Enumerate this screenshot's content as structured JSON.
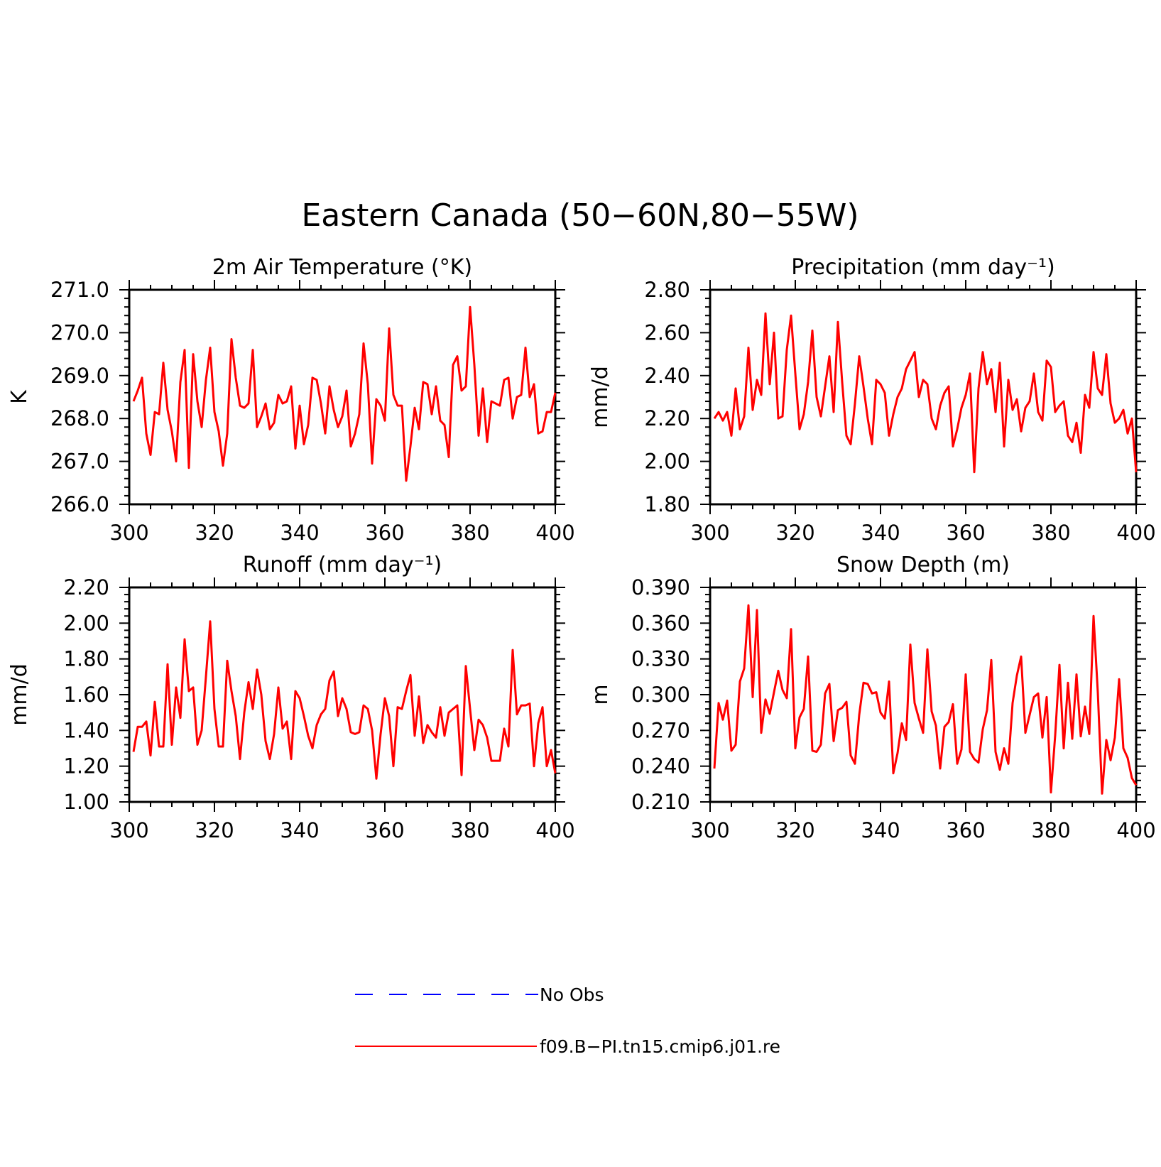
{
  "figure": {
    "title": "Eastern Canada (50−60N,80−55W)",
    "legend": [
      {
        "label": "No Obs",
        "color": "#0000ff",
        "style": "dashed"
      },
      {
        "label": "f09.B−PI.tn15.cmip6.j01.re",
        "color": "#ff0000",
        "style": "solid"
      }
    ]
  },
  "chart_data": [
    {
      "type": "line",
      "title": "2m Air Temperature (°K)",
      "xlabel": "",
      "ylabel": "K",
      "xlim": [
        300,
        400
      ],
      "ylim": [
        266.0,
        271.0
      ],
      "xticks": [
        "300",
        "320",
        "340",
        "360",
        "380",
        "400"
      ],
      "yticks": [
        "266.0",
        "267.0",
        "268.0",
        "269.0",
        "270.0",
        "271.0"
      ],
      "x_start": 301,
      "series": [
        {
          "name": "f09.B−PI.tn15.cmip6.j01.re",
          "color": "#ff0000",
          "values": [
            268.4,
            268.65,
            268.95,
            267.65,
            267.15,
            268.15,
            268.1,
            269.3,
            268.2,
            267.7,
            267.0,
            268.85,
            269.6,
            266.85,
            269.5,
            268.4,
            267.8,
            268.9,
            269.65,
            268.15,
            267.7,
            266.9,
            267.65,
            269.85,
            268.95,
            268.3,
            268.25,
            268.35,
            269.6,
            267.8,
            268.05,
            268.35,
            267.75,
            267.9,
            268.55,
            268.35,
            268.4,
            268.75,
            267.3,
            268.3,
            267.4,
            267.85,
            268.95,
            268.9,
            268.35,
            267.65,
            268.75,
            268.2,
            267.8,
            268.05,
            268.65,
            267.35,
            267.65,
            268.1,
            269.75,
            268.8,
            266.95,
            268.45,
            268.3,
            267.95,
            270.1,
            268.55,
            268.3,
            268.3,
            266.55,
            267.35,
            268.25,
            267.75,
            268.85,
            268.8,
            268.1,
            268.75,
            267.95,
            267.85,
            267.1,
            269.25,
            269.45,
            268.65,
            268.75,
            270.6,
            269.25,
            267.6,
            268.7,
            267.45,
            268.4,
            268.35,
            268.3,
            268.9,
            268.95,
            268.0,
            268.5,
            268.55,
            269.65,
            268.5,
            268.8,
            267.65,
            267.7,
            268.15,
            268.15,
            268.6
          ]
        }
      ]
    },
    {
      "type": "line",
      "title": "Precipitation (mm day⁻¹)",
      "xlabel": "",
      "ylabel": "mm/d",
      "xlim": [
        300,
        400
      ],
      "ylim": [
        1.8,
        2.8
      ],
      "xticks": [
        "300",
        "320",
        "340",
        "360",
        "380",
        "400"
      ],
      "yticks": [
        "1.80",
        "2.00",
        "2.20",
        "2.40",
        "2.60",
        "2.80"
      ],
      "x_start": 301,
      "series": [
        {
          "name": "f09.B−PI.tn15.cmip6.j01.re",
          "color": "#ff0000",
          "values": [
            2.2,
            2.23,
            2.19,
            2.23,
            2.12,
            2.34,
            2.15,
            2.21,
            2.53,
            2.24,
            2.38,
            2.31,
            2.69,
            2.36,
            2.6,
            2.2,
            2.21,
            2.52,
            2.68,
            2.41,
            2.15,
            2.22,
            2.37,
            2.61,
            2.3,
            2.21,
            2.35,
            2.49,
            2.23,
            2.65,
            2.37,
            2.12,
            2.08,
            2.27,
            2.49,
            2.35,
            2.2,
            2.08,
            2.38,
            2.36,
            2.32,
            2.12,
            2.22,
            2.3,
            2.34,
            2.43,
            2.47,
            2.51,
            2.3,
            2.38,
            2.36,
            2.2,
            2.15,
            2.26,
            2.32,
            2.35,
            2.07,
            2.15,
            2.25,
            2.31,
            2.41,
            1.95,
            2.34,
            2.51,
            2.36,
            2.43,
            2.23,
            2.46,
            2.07,
            2.38,
            2.24,
            2.29,
            2.14,
            2.25,
            2.28,
            2.41,
            2.23,
            2.19,
            2.47,
            2.44,
            2.23,
            2.26,
            2.28,
            2.12,
            2.09,
            2.18,
            2.04,
            2.31,
            2.25,
            2.51,
            2.34,
            2.31,
            2.5,
            2.27,
            2.18,
            2.2,
            2.24,
            2.13,
            2.2,
            1.95
          ]
        }
      ]
    },
    {
      "type": "line",
      "title": "Runoff (mm day⁻¹)",
      "xlabel": "",
      "ylabel": "mm/d",
      "xlim": [
        300,
        400
      ],
      "ylim": [
        1.0,
        2.2
      ],
      "xticks": [
        "300",
        "320",
        "340",
        "360",
        "380",
        "400"
      ],
      "yticks": [
        "1.00",
        "1.20",
        "1.40",
        "1.60",
        "1.80",
        "2.00",
        "2.20"
      ],
      "x_start": 301,
      "series": [
        {
          "name": "f09.B−PI.tn15.cmip6.j01.re",
          "color": "#ff0000",
          "values": [
            1.28,
            1.42,
            1.42,
            1.45,
            1.26,
            1.56,
            1.31,
            1.31,
            1.77,
            1.32,
            1.64,
            1.47,
            1.91,
            1.62,
            1.64,
            1.32,
            1.4,
            1.7,
            2.01,
            1.52,
            1.31,
            1.31,
            1.79,
            1.62,
            1.48,
            1.24,
            1.5,
            1.67,
            1.52,
            1.74,
            1.6,
            1.34,
            1.24,
            1.38,
            1.64,
            1.41,
            1.45,
            1.24,
            1.62,
            1.58,
            1.48,
            1.37,
            1.3,
            1.43,
            1.49,
            1.52,
            1.68,
            1.73,
            1.48,
            1.58,
            1.52,
            1.39,
            1.38,
            1.39,
            1.54,
            1.52,
            1.4,
            1.13,
            1.38,
            1.58,
            1.48,
            1.2,
            1.53,
            1.52,
            1.62,
            1.71,
            1.37,
            1.59,
            1.33,
            1.43,
            1.39,
            1.36,
            1.53,
            1.37,
            1.5,
            1.52,
            1.54,
            1.15,
            1.76,
            1.52,
            1.29,
            1.46,
            1.43,
            1.36,
            1.23,
            1.23,
            1.23,
            1.41,
            1.31,
            1.85,
            1.49,
            1.54,
            1.54,
            1.55,
            1.2,
            1.44,
            1.53,
            1.2,
            1.29,
            1.16
          ]
        }
      ]
    },
    {
      "type": "line",
      "title": "Snow Depth (m)",
      "xlabel": "",
      "ylabel": "m",
      "xlim": [
        300,
        400
      ],
      "ylim": [
        0.21,
        0.39
      ],
      "xticks": [
        "300",
        "320",
        "340",
        "360",
        "380",
        "400"
      ],
      "yticks": [
        "0.210",
        "0.240",
        "0.270",
        "0.300",
        "0.330",
        "0.360",
        "0.390"
      ],
      "x_start": 301,
      "series": [
        {
          "name": "f09.B−PI.tn15.cmip6.j01.re",
          "color": "#ff0000",
          "values": [
            0.238,
            0.293,
            0.279,
            0.295,
            0.253,
            0.258,
            0.311,
            0.322,
            0.375,
            0.298,
            0.371,
            0.268,
            0.296,
            0.284,
            0.302,
            0.32,
            0.304,
            0.297,
            0.355,
            0.255,
            0.281,
            0.288,
            0.332,
            0.253,
            0.252,
            0.258,
            0.301,
            0.309,
            0.261,
            0.287,
            0.289,
            0.294,
            0.249,
            0.242,
            0.283,
            0.31,
            0.309,
            0.301,
            0.302,
            0.285,
            0.28,
            0.311,
            0.234,
            0.251,
            0.276,
            0.262,
            0.342,
            0.293,
            0.28,
            0.268,
            0.338,
            0.286,
            0.274,
            0.238,
            0.273,
            0.277,
            0.292,
            0.242,
            0.254,
            0.317,
            0.252,
            0.246,
            0.243,
            0.271,
            0.287,
            0.329,
            0.252,
            0.237,
            0.255,
            0.242,
            0.293,
            0.316,
            0.332,
            0.268,
            0.283,
            0.298,
            0.301,
            0.264,
            0.298,
            0.218,
            0.266,
            0.325,
            0.255,
            0.31,
            0.263,
            0.317,
            0.265,
            0.29,
            0.267,
            0.366,
            0.302,
            0.217,
            0.262,
            0.245,
            0.264,
            0.313,
            0.255,
            0.247,
            0.23,
            0.224
          ]
        }
      ]
    }
  ]
}
